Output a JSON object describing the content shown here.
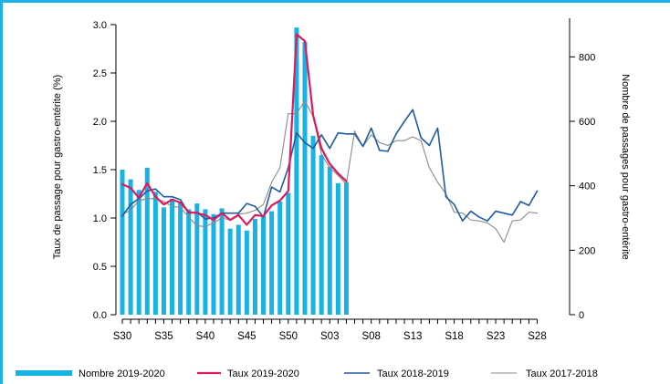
{
  "colors": {
    "frame": "#1bb1e6",
    "bars": "#17b2e6",
    "rate_2019_2020": "#e0195d",
    "rate_2018_2019": "#1e5ba0",
    "rate_2017_2018": "#8a8a8a"
  },
  "chart_data": {
    "type": "bar+line",
    "xlabel": "",
    "ylabel_left": "Taux de passage pour gastro-entérite (%)",
    "ylabel_right": "Nombre de passages pour gastro-entérite",
    "ylim_left": [
      0,
      3.0
    ],
    "ylim_right": [
      0,
      900
    ],
    "yticks_left": [
      "0.0",
      "0.5",
      "1.0",
      "1.5",
      "2.0",
      "2.5",
      "3.0"
    ],
    "yticks_right": [
      "0",
      "200",
      "400",
      "600",
      "800"
    ],
    "weeks": [
      "S30",
      "S31",
      "S32",
      "S33",
      "S34",
      "S35",
      "S36",
      "S37",
      "S38",
      "S39",
      "S40",
      "S41",
      "S42",
      "S43",
      "S44",
      "S45",
      "S46",
      "S47",
      "S48",
      "S49",
      "S50",
      "S51",
      "S52",
      "S01",
      "S02",
      "S03",
      "S04",
      "S05",
      "S06",
      "S07",
      "S08",
      "S09",
      "S10",
      "S11",
      "S12",
      "S13",
      "S14",
      "S15",
      "S16",
      "S17",
      "S18",
      "S19",
      "S20",
      "S21",
      "S22",
      "S23",
      "S24",
      "S25",
      "S26",
      "S27",
      "S28",
      "S29"
    ],
    "xticks": [
      "S30",
      "S35",
      "S40",
      "S45",
      "S50",
      "S03",
      "S08",
      "S13",
      "S18",
      "S23",
      "S28"
    ],
    "grid": false,
    "legend_position": "bottom",
    "series": [
      {
        "name": "Nombre 2019-2020",
        "type": "bar",
        "axis": "left",
        "values": [
          1.5,
          1.4,
          1.29,
          1.52,
          1.27,
          1.11,
          1.2,
          1.17,
          1.09,
          1.15,
          1.09,
          1.04,
          1.1,
          0.89,
          0.93,
          0.87,
          0.99,
          1.03,
          1.07,
          1.17,
          1.26,
          2.97,
          2.82,
          1.85,
          1.65,
          1.53,
          1.36,
          1.37
        ]
      },
      {
        "name": "Taux 2019-2020",
        "type": "line",
        "axis": "left",
        "values": [
          1.35,
          1.31,
          1.21,
          1.36,
          1.22,
          1.14,
          1.19,
          1.16,
          1.06,
          1.05,
          1.03,
          0.98,
          1.05,
          0.98,
          1.03,
          0.93,
          1.03,
          1.02,
          1.13,
          1.18,
          1.28,
          2.9,
          2.83,
          2.06,
          1.72,
          1.56,
          1.46,
          1.38
        ]
      },
      {
        "name": "Taux 2018-2019",
        "type": "line",
        "axis": "left",
        "values": [
          1.02,
          1.14,
          1.2,
          1.28,
          1.3,
          1.22,
          1.22,
          1.19,
          1.05,
          1.06,
          0.99,
          1.0,
          1.05,
          1.05,
          1.05,
          1.15,
          1.12,
          1.01,
          1.32,
          1.27,
          1.52,
          1.88,
          1.78,
          1.72,
          1.86,
          1.72,
          1.88,
          1.87,
          1.87,
          1.74,
          1.93,
          1.7,
          1.69,
          1.87,
          2.0,
          2.12,
          1.83,
          1.75,
          1.93,
          1.22,
          1.14,
          0.97,
          1.07,
          1.01,
          0.97,
          1.07,
          1.05,
          1.03,
          1.17,
          1.13,
          1.28
        ]
      },
      {
        "name": "Taux 2017-2018",
        "type": "line",
        "axis": "left",
        "values": [
          1.04,
          1.08,
          1.18,
          1.2,
          1.2,
          1.17,
          1.12,
          1.11,
          1.01,
          0.92,
          0.91,
          0.95,
          1.0,
          0.98,
          1.04,
          1.05,
          1.08,
          1.14,
          1.37,
          1.52,
          2.08,
          2.08,
          2.21,
          2.05,
          1.66,
          1.52,
          1.44,
          1.35,
          1.9,
          1.74,
          1.86,
          1.78,
          1.75,
          1.8,
          1.8,
          1.84,
          1.8,
          1.52,
          1.37,
          1.25,
          1.06,
          1.05,
          0.98,
          0.97,
          0.95,
          0.89,
          0.75,
          0.97,
          0.98,
          1.06,
          1.05
        ]
      }
    ]
  }
}
